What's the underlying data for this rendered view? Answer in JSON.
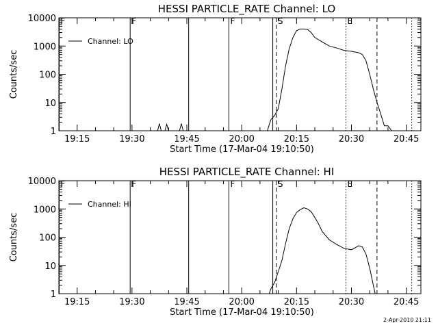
{
  "footer": {
    "timestamp": "2-Apr-2010 21:11"
  },
  "chart_data": [
    {
      "type": "line",
      "title": "HESSI PARTICLE_RATE Channel: LO",
      "xlabel": "Start Time (17-Mar-04 19:10:50)",
      "ylabel": "Counts/sec",
      "x_unit": "time",
      "xlim": [
        "19:10",
        "20:49"
      ],
      "ylim": [
        1,
        10000
      ],
      "y_scale": "log",
      "x_ticks": [
        "19:15",
        "19:30",
        "19:45",
        "20:00",
        "20:15",
        "20:30",
        "20:45"
      ],
      "y_ticks": [
        "1",
        "10",
        "100",
        "1000",
        "10000"
      ],
      "grid": false,
      "legend": {
        "position": "top-left",
        "entries": [
          "Channel: LO"
        ]
      },
      "series": [
        {
          "name": "Channel: LO",
          "points": [
            [
              "19:37",
              1
            ],
            [
              "19:37:30",
              1.8
            ],
            [
              "19:38",
              1
            ],
            [
              "19:39",
              1
            ],
            [
              "19:39:30",
              1.7
            ],
            [
              "19:40",
              1
            ],
            [
              "19:43",
              1
            ],
            [
              "19:43:30",
              1.8
            ],
            [
              "19:44",
              1
            ],
            [
              "20:07",
              1
            ],
            [
              "20:07:30",
              1.6
            ],
            [
              "20:08",
              2.5
            ],
            [
              "20:09",
              3.5
            ],
            [
              "20:10",
              6
            ],
            [
              "20:11",
              30
            ],
            [
              "20:12",
              200
            ],
            [
              "20:13",
              800
            ],
            [
              "20:14",
              2000
            ],
            [
              "20:15",
              3500
            ],
            [
              "20:16",
              4000
            ],
            [
              "20:17",
              4000
            ],
            [
              "20:18",
              3900
            ],
            [
              "20:19",
              3000
            ],
            [
              "20:20",
              2000
            ],
            [
              "20:22",
              1400
            ],
            [
              "20:24",
              1000
            ],
            [
              "20:26",
              850
            ],
            [
              "20:28",
              700
            ],
            [
              "20:30",
              650
            ],
            [
              "20:32",
              580
            ],
            [
              "20:33",
              500
            ],
            [
              "20:34",
              300
            ],
            [
              "20:35",
              100
            ],
            [
              "20:36",
              30
            ],
            [
              "20:37",
              10
            ],
            [
              "20:38",
              4
            ],
            [
              "20:39",
              1.5
            ],
            [
              "20:40",
              1.5
            ],
            [
              "20:41",
              1
            ]
          ]
        }
      ],
      "annotations": [
        {
          "time": "19:10",
          "style": "solid",
          "label": "F"
        },
        {
          "time": "19:29:30",
          "style": "solid",
          "label": "F"
        },
        {
          "time": "19:45:30",
          "style": "solid",
          "label": ""
        },
        {
          "time": "19:56:30",
          "style": "solid",
          "label": "F"
        },
        {
          "time": "20:08:30",
          "style": "solid",
          "label": ""
        },
        {
          "time": "20:09:30",
          "style": "dashed",
          "label": "S"
        },
        {
          "time": "20:28:30",
          "style": "dotted",
          "label": "E"
        },
        {
          "time": "20:37",
          "style": "dashed",
          "label": ""
        },
        {
          "time": "20:46:30",
          "style": "dotted",
          "label": ""
        }
      ]
    },
    {
      "type": "line",
      "title": "HESSI PARTICLE_RATE Channel: HI",
      "xlabel": "Start Time (17-Mar-04 19:10:50)",
      "ylabel": "Counts/sec",
      "x_unit": "time",
      "xlim": [
        "19:10",
        "20:49"
      ],
      "ylim": [
        1,
        10000
      ],
      "y_scale": "log",
      "x_ticks": [
        "19:15",
        "19:30",
        "19:45",
        "20:00",
        "20:15",
        "20:30",
        "20:45"
      ],
      "y_ticks": [
        "1",
        "10",
        "100",
        "1000",
        "10000"
      ],
      "grid": false,
      "legend": {
        "position": "top-left",
        "entries": [
          "Channel: HI"
        ]
      },
      "series": [
        {
          "name": "Channel: HI",
          "points": [
            [
              "20:07:30",
              1
            ],
            [
              "20:08",
              1.5
            ],
            [
              "20:09",
              2.5
            ],
            [
              "20:10",
              6
            ],
            [
              "20:11",
              15
            ],
            [
              "20:12",
              60
            ],
            [
              "20:13",
              200
            ],
            [
              "20:14",
              450
            ],
            [
              "20:15",
              750
            ],
            [
              "20:16",
              950
            ],
            [
              "20:17",
              1100
            ],
            [
              "20:18",
              1000
            ],
            [
              "20:19",
              800
            ],
            [
              "20:20",
              500
            ],
            [
              "20:21",
              300
            ],
            [
              "20:22",
              160
            ],
            [
              "20:24",
              80
            ],
            [
              "20:26",
              55
            ],
            [
              "20:28",
              40
            ],
            [
              "20:30",
              36
            ],
            [
              "20:31",
              42
            ],
            [
              "20:32",
              50
            ],
            [
              "20:33",
              45
            ],
            [
              "20:34",
              25
            ],
            [
              "20:35",
              8
            ],
            [
              "20:36",
              2
            ],
            [
              "20:36:30",
              1
            ]
          ]
        }
      ],
      "annotations": [
        {
          "time": "19:10",
          "style": "solid",
          "label": "F"
        },
        {
          "time": "19:29:30",
          "style": "solid",
          "label": "F"
        },
        {
          "time": "19:45:30",
          "style": "solid",
          "label": ""
        },
        {
          "time": "19:56:30",
          "style": "solid",
          "label": "F"
        },
        {
          "time": "20:08:30",
          "style": "solid",
          "label": ""
        },
        {
          "time": "20:09:30",
          "style": "dashed",
          "label": "S"
        },
        {
          "time": "20:28:30",
          "style": "dotted",
          "label": "E"
        },
        {
          "time": "20:37",
          "style": "dashed",
          "label": ""
        },
        {
          "time": "20:46:30",
          "style": "dotted",
          "label": ""
        }
      ]
    }
  ]
}
